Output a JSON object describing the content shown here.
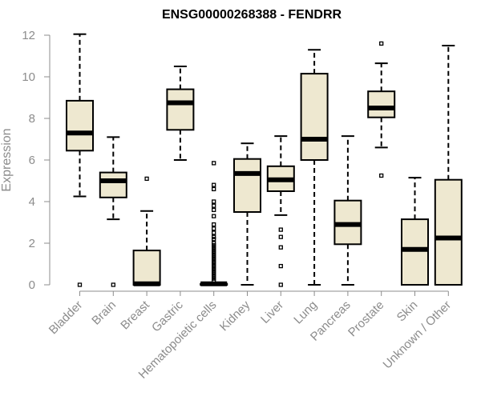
{
  "chart_data": {
    "type": "boxplot",
    "title": "ENSG00000268388 - FENDRR",
    "ylabel": "Expression",
    "xlabel": "",
    "ylim": [
      0,
      12
    ],
    "yticks": [
      0,
      2,
      4,
      6,
      8,
      10,
      12
    ],
    "box_color": "#EEE8D0",
    "categories": [
      "Bladder",
      "Brain",
      "Breast",
      "Gastric",
      "Hematopoietic cells",
      "Kidney",
      "Liver",
      "Lung",
      "Pancreas",
      "Prostate",
      "Skin",
      "Unknown / Other"
    ],
    "boxes": [
      {
        "category": "Bladder",
        "min": 4.25,
        "q1": 6.45,
        "median": 7.3,
        "q3": 8.85,
        "max": 12.05,
        "outliers": [
          0
        ]
      },
      {
        "category": "Brain",
        "min": 3.15,
        "q1": 4.2,
        "median": 5.0,
        "q3": 5.4,
        "max": 7.1,
        "outliers": [
          0
        ]
      },
      {
        "category": "Breast",
        "min": 0,
        "q1": 0,
        "median": 0.05,
        "q3": 1.65,
        "max": 3.55,
        "outliers": [
          5.1
        ]
      },
      {
        "category": "Gastric",
        "min": 6.0,
        "q1": 7.45,
        "median": 8.75,
        "q3": 9.4,
        "max": 10.5,
        "outliers": []
      },
      {
        "category": "Hematopoietic cells",
        "min": 0,
        "q1": 0,
        "median": 0.05,
        "q3": 0.05,
        "max": 0.1,
        "outliers": [
          0.2,
          0.3,
          0.4,
          0.5,
          0.6,
          0.7,
          0.8,
          0.9,
          1.0,
          1.1,
          1.2,
          1.3,
          1.4,
          1.5,
          1.6,
          1.7,
          1.8,
          1.9,
          2.0,
          2.2,
          2.3,
          2.5,
          2.7,
          2.9,
          3.3,
          3.6,
          3.8,
          4.0,
          4.6,
          4.8,
          5.85
        ]
      },
      {
        "category": "Kidney",
        "min": 0,
        "q1": 3.5,
        "median": 5.35,
        "q3": 6.05,
        "max": 6.8,
        "outliers": []
      },
      {
        "category": "Liver",
        "min": 3.35,
        "q1": 4.5,
        "median": 5.05,
        "q3": 5.7,
        "max": 7.15,
        "outliers": [
          0,
          0.9,
          1.8,
          2.3,
          2.65
        ]
      },
      {
        "category": "Lung",
        "min": 0,
        "q1": 6.0,
        "median": 7.0,
        "q3": 10.15,
        "max": 11.3,
        "outliers": []
      },
      {
        "category": "Pancreas",
        "min": 0,
        "q1": 1.95,
        "median": 2.9,
        "q3": 4.05,
        "max": 7.15,
        "outliers": []
      },
      {
        "category": "Prostate",
        "min": 6.6,
        "q1": 8.05,
        "median": 8.5,
        "q3": 9.3,
        "max": 10.65,
        "outliers": [
          5.25,
          11.6
        ]
      },
      {
        "category": "Skin",
        "min": 0,
        "q1": 0,
        "median": 1.7,
        "q3": 3.15,
        "max": 5.15,
        "outliers": []
      },
      {
        "category": "Unknown / Other",
        "min": 0,
        "q1": 0,
        "median": 2.25,
        "q3": 5.05,
        "max": 11.5,
        "outliers": []
      }
    ]
  }
}
